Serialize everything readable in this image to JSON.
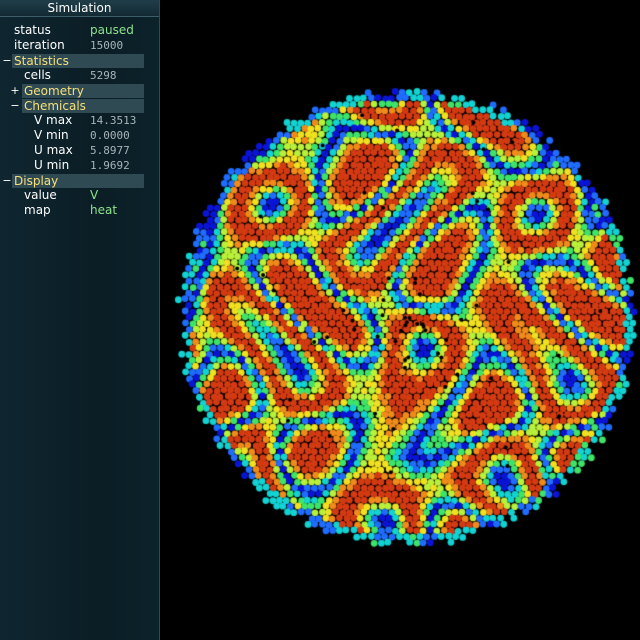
{
  "panel": {
    "title": "Simulation",
    "status_label": "status",
    "status_value": "paused",
    "iteration_label": "iteration",
    "iteration_value": "15000",
    "statistics": {
      "toggle": "−",
      "label": "Statistics",
      "cells_label": "cells",
      "cells_value": "5298",
      "geometry": {
        "toggle": "+",
        "label": "Geometry"
      },
      "chemicals": {
        "toggle": "−",
        "label": "Chemicals",
        "vmax_label": "V max",
        "vmax_value": "14.3513",
        "vmin_label": "V min",
        "vmin_value": "0.0000",
        "umax_label": "U max",
        "umax_value": "5.8977",
        "umin_label": "U min",
        "umin_value": "1.9692"
      }
    },
    "display": {
      "toggle": "−",
      "label": "Display",
      "value_label": "value",
      "value_value": "V",
      "map_label": "map",
      "map_value": "heat"
    }
  },
  "visualization": {
    "name": "cell-colony-heatmap",
    "colormap": [
      "#0a14d6",
      "#1f6cff",
      "#12d2d2",
      "#3ee36a",
      "#b8f03a",
      "#f0e020",
      "#f08a1a",
      "#d43a12"
    ]
  }
}
